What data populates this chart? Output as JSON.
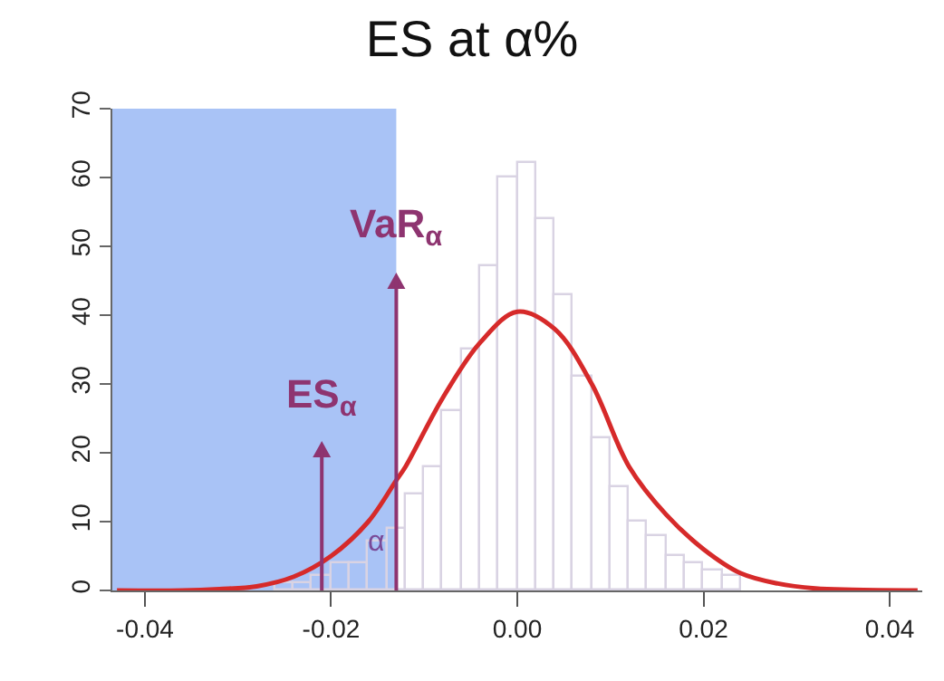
{
  "chart_data": {
    "type": "histogram",
    "title": "ES at α%",
    "bins": [
      -0.026,
      -0.024,
      -0.022,
      -0.02,
      -0.018,
      -0.016,
      -0.014,
      -0.012,
      -0.01,
      -0.008,
      -0.006,
      -0.004,
      -0.002,
      0,
      0.002,
      0.004,
      0.006,
      0.008,
      0.01,
      0.012,
      0.014,
      0.016,
      0.018,
      0.02,
      0.022,
      0.024
    ],
    "values": [
      1,
      1,
      2,
      4,
      4,
      7,
      9,
      14,
      18,
      26,
      35,
      47,
      60,
      62,
      54,
      43,
      31,
      22,
      15,
      10,
      8,
      5,
      4,
      3,
      2
    ],
    "color": "#d9d3e3",
    "series": [
      {
        "type": "line",
        "color": "#d62a2a",
        "x": [
          -0.043,
          -0.036,
          -0.032,
          -0.028,
          -0.024,
          -0.02,
          -0.016,
          -0.013,
          -0.012,
          -0.008,
          -0.004,
          0,
          0.004,
          0.008,
          0.012,
          0.016,
          0.02,
          0.024,
          0.028,
          0.032,
          0.036,
          0.043
        ],
        "values": [
          0,
          0,
          0.2,
          0.6,
          2,
          5,
          10,
          16,
          18,
          28,
          36,
          40.5,
          38,
          30,
          18,
          11,
          6,
          2.5,
          1,
          0.3,
          0.1,
          0
        ]
      }
    ],
    "bands": [
      {
        "axis": "x",
        "from": -0.0435,
        "to": -0.013,
        "color": "#a9c3f6"
      }
    ],
    "ref_lines": [
      {
        "axis": "x",
        "value": -0.013,
        "label": "VaR$_{α}$",
        "color": "#8e3470"
      },
      {
        "axis": "x",
        "value": -0.021,
        "label": "ES$_{α}$",
        "color": "#8e3470"
      }
    ],
    "annotations": [
      "α"
    ],
    "xlim": [
      -0.0435,
      0.0435
    ],
    "ylim": [
      0,
      70
    ],
    "xticks": [
      -0.04,
      -0.02,
      {
        "value": 0,
        "label": "0.00"
      },
      0.02,
      0.04
    ],
    "yticks": [
      0,
      10,
      20,
      30,
      40,
      50,
      60,
      70
    ],
    "grid": false
  }
}
